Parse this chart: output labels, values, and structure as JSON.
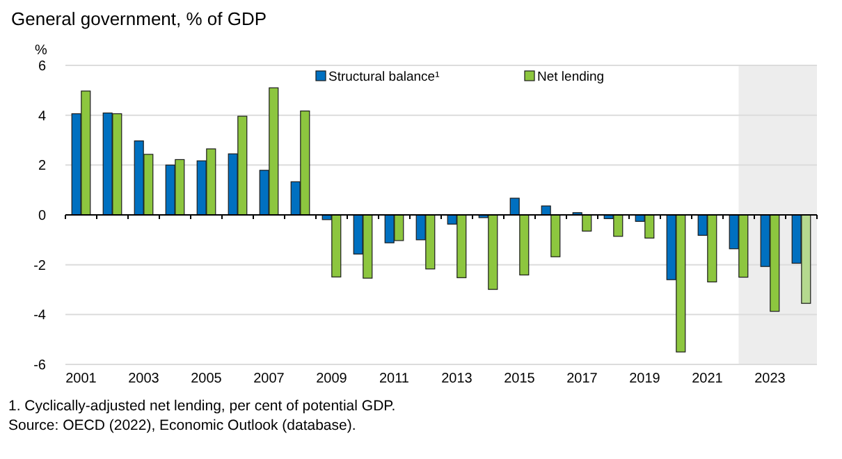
{
  "chart_data": {
    "type": "bar",
    "title": "General government, % of GDP",
    "ylabel": "%",
    "x": [
      2001,
      2002,
      2003,
      2004,
      2005,
      2006,
      2007,
      2008,
      2009,
      2010,
      2011,
      2012,
      2013,
      2014,
      2015,
      2016,
      2017,
      2018,
      2019,
      2020,
      2021,
      2022,
      2023,
      2024
    ],
    "series": [
      {
        "name": "Structural balance¹",
        "color": "#0070c0",
        "values": [
          4.06,
          4.09,
          2.97,
          2.0,
          2.17,
          2.45,
          1.79,
          1.33,
          -0.19,
          -1.57,
          -1.12,
          -1.0,
          -0.37,
          -0.11,
          0.67,
          0.36,
          0.09,
          -0.15,
          -0.26,
          -2.6,
          -0.82,
          -1.36,
          -2.07,
          -1.94
        ]
      },
      {
        "name": "Net lending",
        "color": "#8dc63f",
        "colors": [
          "#8dc63f",
          "#8dc63f",
          "#8dc63f",
          "#8dc63f",
          "#8dc63f",
          "#8dc63f",
          "#8dc63f",
          "#8dc63f",
          "#8dc63f",
          "#8dc63f",
          "#8dc63f",
          "#8dc63f",
          "#8dc63f",
          "#8dc63f",
          "#8dc63f",
          "#8dc63f",
          "#8dc63f",
          "#8dc63f",
          "#8dc63f",
          "#8dc63f",
          "#8dc63f",
          "#8dc63f",
          "#8dc63f",
          "#b5d98f"
        ],
        "values": [
          4.97,
          4.06,
          2.43,
          2.22,
          2.65,
          3.96,
          5.1,
          4.17,
          -2.49,
          -2.54,
          -1.03,
          -2.17,
          -2.52,
          -2.99,
          -2.41,
          -1.68,
          -0.65,
          -0.86,
          -0.93,
          -5.5,
          -2.69,
          -2.5,
          -3.87,
          -3.55
        ]
      }
    ],
    "xlim": [
      2000.5,
      2024.5
    ],
    "xticks": [
      2001,
      2003,
      2005,
      2007,
      2009,
      2011,
      2013,
      2015,
      2017,
      2019,
      2021,
      2023,
      {
        "value": 2000.5,
        "label": null
      },
      {
        "value": 2001.5,
        "label": null
      },
      {
        "value": 2002.5,
        "label": null
      },
      {
        "value": 2003.5,
        "label": null
      },
      {
        "value": 2004.5,
        "label": null
      },
      {
        "value": 2005.5,
        "label": null
      },
      {
        "value": 2006.5,
        "label": null
      },
      {
        "value": 2007.5,
        "label": null
      },
      {
        "value": 2008.5,
        "label": null
      },
      {
        "value": 2009.5,
        "label": null
      },
      {
        "value": 2010.5,
        "label": null
      },
      {
        "value": 2011.5,
        "label": null
      },
      {
        "value": 2012.5,
        "label": null
      },
      {
        "value": 2013.5,
        "label": null
      },
      {
        "value": 2014.5,
        "label": null
      },
      {
        "value": 2015.5,
        "label": null
      },
      {
        "value": 2016.5,
        "label": null
      },
      {
        "value": 2017.5,
        "label": null
      },
      {
        "value": 2018.5,
        "label": null
      },
      {
        "value": 2019.5,
        "label": null
      },
      {
        "value": 2020.5,
        "label": null
      },
      {
        "value": 2021.5,
        "label": null
      },
      {
        "value": 2022.5,
        "label": null
      },
      {
        "value": 2023.5,
        "label": null
      },
      {
        "value": 2024.5,
        "label": null
      }
    ],
    "ylim": [
      -6,
      6
    ],
    "yticks": [
      -6,
      -4,
      -2,
      0,
      2,
      4,
      6
    ],
    "grid": "y",
    "legend": "top",
    "bands": [
      {
        "axis": "x",
        "from": 2022,
        "to": 2024.5,
        "color": "#ededed"
      }
    ],
    "annotations": [
      "1. Cyclically-adjusted net lending, per cent of potential GDP.",
      "Source: OECD (2022), Economic Outlook (database)."
    ]
  }
}
